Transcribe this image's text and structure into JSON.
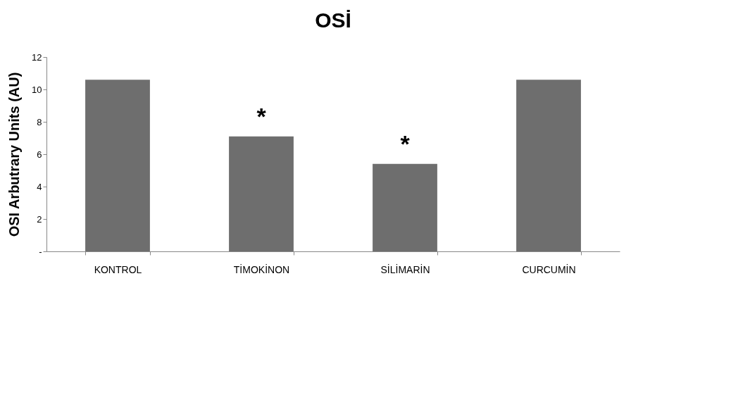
{
  "chart_data": {
    "type": "bar",
    "title": "OSİ",
    "ylabel": "OSI Arbutrary Units (AU)",
    "categories": [
      "KONTROL",
      "TİMOKİNON",
      "SİLİMARİN",
      "CURCUMİN"
    ],
    "values": [
      10.6,
      7.1,
      5.4,
      10.6
    ],
    "color": "#6e6e6e",
    "ylim": [
      0,
      12
    ],
    "yticks": [
      {
        "value": 0,
        "label": "-"
      },
      2,
      4,
      6,
      8,
      10,
      12
    ],
    "grid": false,
    "annotations": [
      {
        "text": "*",
        "x": "TİMOKİNON",
        "y": 7.1
      },
      {
        "text": "*",
        "x": "SİLİMARİN",
        "y": 5.4
      }
    ]
  }
}
